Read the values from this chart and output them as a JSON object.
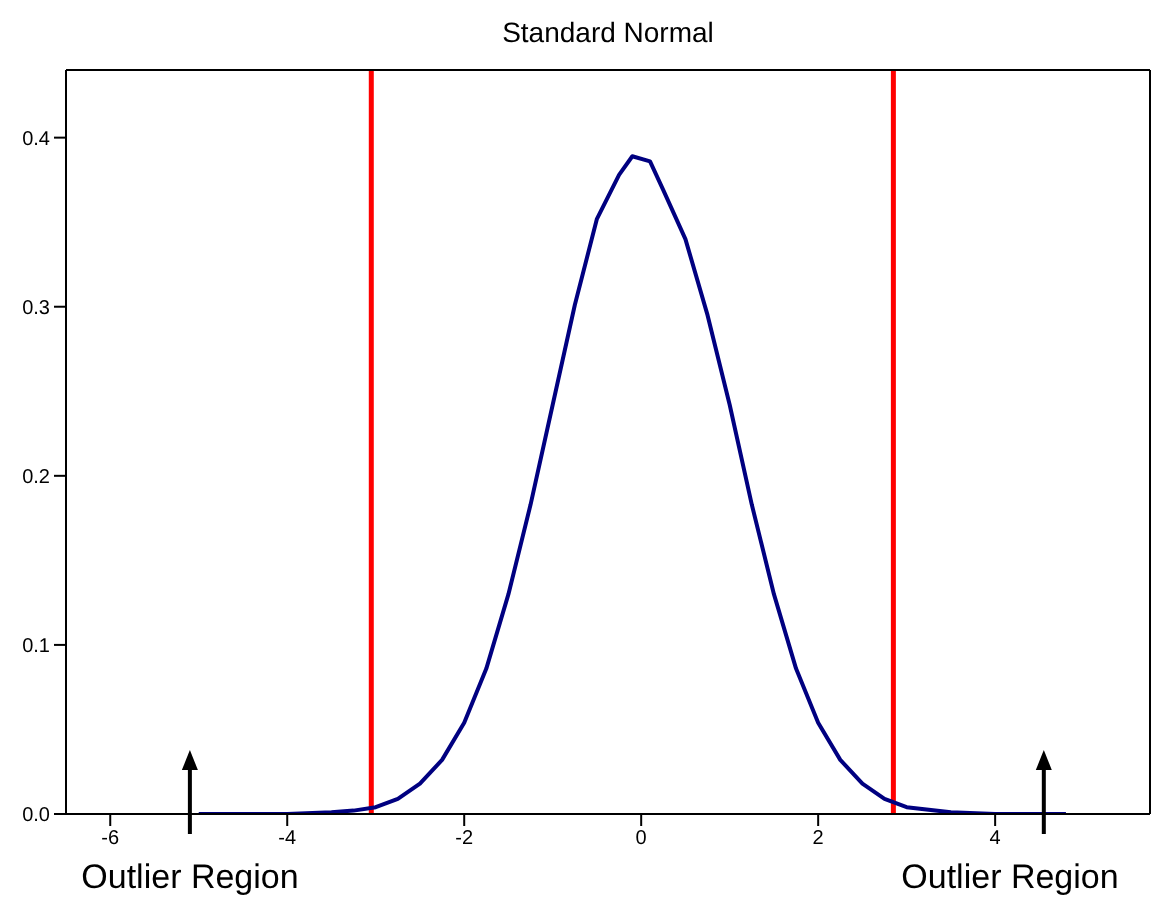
{
  "chart_data": {
    "type": "line",
    "title": "Standard Normal",
    "x": [
      -5,
      -4.5,
      -4,
      -3.5,
      -3.25,
      -3,
      -2.75,
      -2.5,
      -2.25,
      -2,
      -1.75,
      -1.5,
      -1.25,
      -1,
      -0.75,
      -0.5,
      -0.25,
      -0.1,
      0.1,
      0.25,
      0.5,
      0.75,
      1,
      1.25,
      1.5,
      1.75,
      2,
      2.25,
      2.5,
      2.75,
      3,
      3.5,
      4,
      4.5,
      4.8
    ],
    "series": [
      {
        "color": "#000080",
        "values": [
          0,
          0,
          0,
          0.001,
          0.002,
          0.004,
          0.009,
          0.018,
          0.032,
          0.054,
          0.086,
          0.13,
          0.183,
          0.242,
          0.301,
          0.352,
          0.378,
          0.389,
          0.386,
          0.369,
          0.34,
          0.295,
          0.242,
          0.183,
          0.13,
          0.086,
          0.054,
          0.032,
          0.018,
          0.009,
          0.004,
          0.001,
          0,
          0,
          0
        ]
      }
    ],
    "xlim": [
      -6.5,
      5.75
    ],
    "xticks": [
      -6,
      -4,
      -2,
      0,
      2,
      4
    ],
    "ylim": [
      0,
      0.44
    ],
    "yticks": [
      {
        "value": 0,
        "label": "0.0"
      },
      0.1,
      0.2,
      0.3,
      0.4
    ],
    "marker": "none",
    "line_style": "solid",
    "ref_lines": [
      {
        "axis": "x",
        "value": -3.05,
        "color": "#ff0000"
      },
      {
        "axis": "x",
        "value": 2.85,
        "color": "#ff0000"
      }
    ],
    "annotations": [
      {
        "text": "Outlier Region",
        "x": -5.1,
        "y": 0
      },
      {
        "text": "Outlier Region",
        "x": 4.55,
        "y": 0
      }
    ]
  }
}
